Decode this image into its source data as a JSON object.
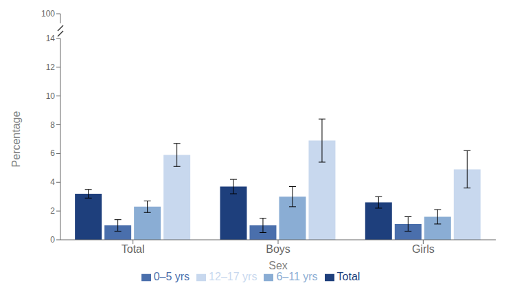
{
  "chart_data": {
    "type": "bar",
    "xlabel": "Sex",
    "ylabel": "Percentage",
    "categories": [
      "Total",
      "Boys",
      "Girls"
    ],
    "series": [
      {
        "name": "Total",
        "color": "#1e3f7c",
        "values": [
          3.2,
          3.7,
          2.6
        ],
        "errors": [
          0.3,
          0.5,
          0.4
        ]
      },
      {
        "name": "0–5 yrs",
        "color": "#4a6fac",
        "values": [
          1.0,
          1.0,
          1.1
        ],
        "errors": [
          0.4,
          0.5,
          0.5
        ]
      },
      {
        "name": "6–11 yrs",
        "color": "#8aadd4",
        "values": [
          2.3,
          3.0,
          1.6
        ],
        "errors": [
          0.4,
          0.7,
          0.5
        ]
      },
      {
        "name": "12–17 yrs",
        "color": "#c8d8ee",
        "values": [
          5.9,
          6.9,
          4.9
        ],
        "errors": [
          0.8,
          1.5,
          1.3
        ]
      }
    ],
    "ylim": [
      0,
      14
    ],
    "yticks": [
      0,
      2,
      4,
      6,
      8,
      10,
      12,
      14
    ],
    "y_break_top": 100,
    "legend": "bottom"
  }
}
